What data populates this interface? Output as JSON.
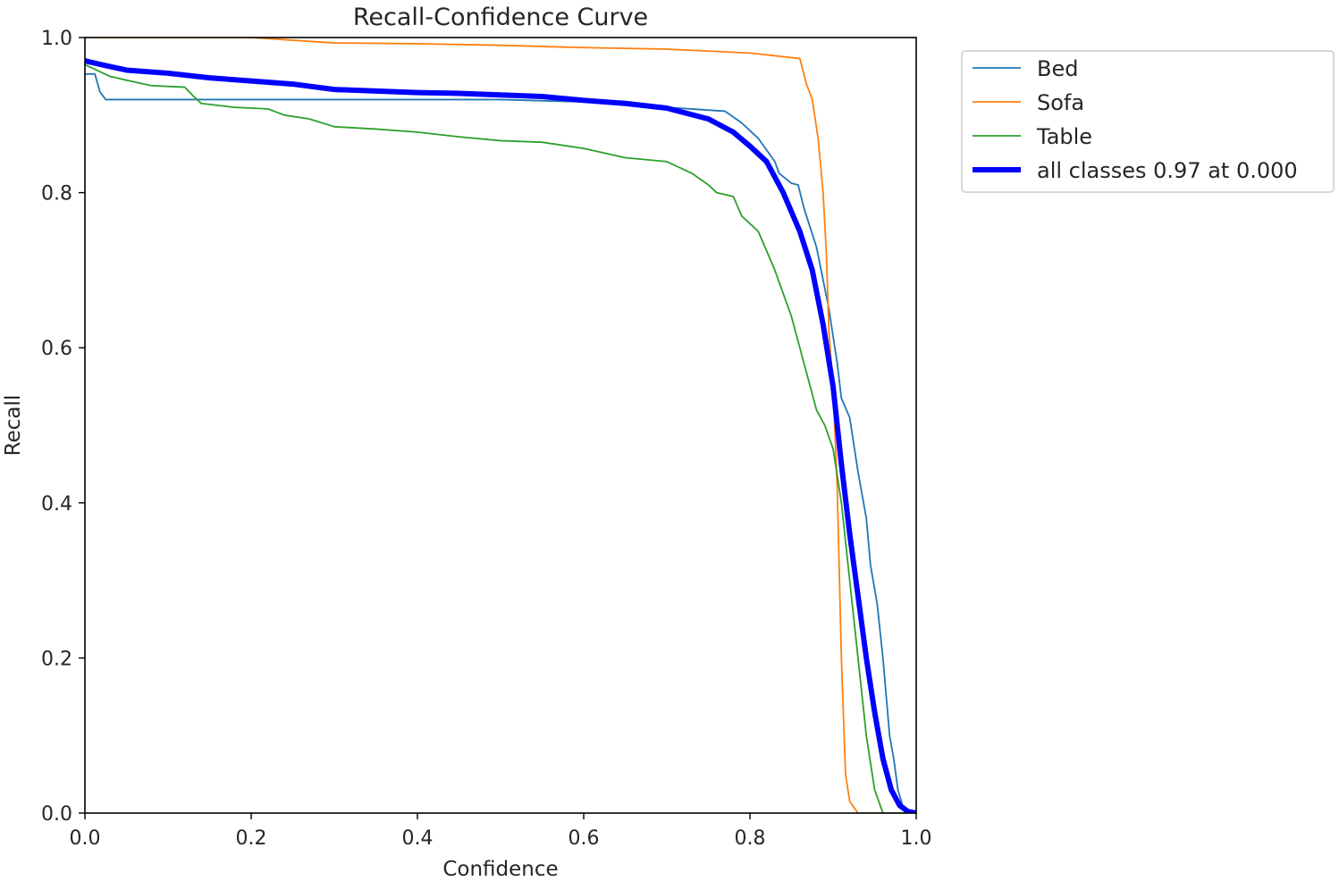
{
  "chart_data": {
    "type": "line",
    "title": "Recall-Confidence Curve",
    "xlabel": "Confidence",
    "ylabel": "Recall",
    "xlim": [
      0.0,
      1.0
    ],
    "ylim": [
      0.0,
      1.0
    ],
    "grid": false,
    "legend_position": "outside-top-right",
    "x_ticks": [
      "0.0",
      "0.2",
      "0.4",
      "0.6",
      "0.8",
      "1.0"
    ],
    "y_ticks": [
      "0.0",
      "0.2",
      "0.4",
      "0.6",
      "0.8",
      "1.0"
    ],
    "series": [
      {
        "name": "Bed",
        "color": "#1f77b4",
        "line_width": "thin",
        "points": [
          [
            0.0,
            0.953
          ],
          [
            0.012,
            0.953
          ],
          [
            0.018,
            0.93
          ],
          [
            0.025,
            0.92
          ],
          [
            0.1,
            0.92
          ],
          [
            0.2,
            0.92
          ],
          [
            0.3,
            0.92
          ],
          [
            0.4,
            0.92
          ],
          [
            0.5,
            0.92
          ],
          [
            0.6,
            0.917
          ],
          [
            0.7,
            0.91
          ],
          [
            0.77,
            0.905
          ],
          [
            0.79,
            0.89
          ],
          [
            0.81,
            0.87
          ],
          [
            0.83,
            0.84
          ],
          [
            0.835,
            0.825
          ],
          [
            0.85,
            0.812
          ],
          [
            0.858,
            0.81
          ],
          [
            0.865,
            0.78
          ],
          [
            0.88,
            0.73
          ],
          [
            0.895,
            0.65
          ],
          [
            0.905,
            0.58
          ],
          [
            0.91,
            0.535
          ],
          [
            0.92,
            0.51
          ],
          [
            0.93,
            0.44
          ],
          [
            0.94,
            0.38
          ],
          [
            0.945,
            0.32
          ],
          [
            0.953,
            0.27
          ],
          [
            0.96,
            0.2
          ],
          [
            0.968,
            0.1
          ],
          [
            0.973,
            0.07
          ],
          [
            0.978,
            0.03
          ],
          [
            0.985,
            0.005
          ],
          [
            1.0,
            0.0
          ]
        ]
      },
      {
        "name": "Sofa",
        "color": "#ff7f0e",
        "line_width": "thin",
        "points": [
          [
            0.0,
            1.0
          ],
          [
            0.2,
            1.0
          ],
          [
            0.3,
            0.993
          ],
          [
            0.4,
            0.992
          ],
          [
            0.5,
            0.99
          ],
          [
            0.6,
            0.987
          ],
          [
            0.7,
            0.985
          ],
          [
            0.8,
            0.98
          ],
          [
            0.86,
            0.973
          ],
          [
            0.868,
            0.94
          ],
          [
            0.875,
            0.92
          ],
          [
            0.882,
            0.87
          ],
          [
            0.888,
            0.8
          ],
          [
            0.892,
            0.72
          ],
          [
            0.895,
            0.62
          ],
          [
            0.9,
            0.55
          ],
          [
            0.905,
            0.42
          ],
          [
            0.91,
            0.2
          ],
          [
            0.915,
            0.05
          ],
          [
            0.92,
            0.015
          ],
          [
            0.93,
            0.0
          ],
          [
            1.0,
            0.0
          ]
        ]
      },
      {
        "name": "Table",
        "color": "#2ca02c",
        "line_width": "thin",
        "points": [
          [
            0.0,
            0.965
          ],
          [
            0.01,
            0.96
          ],
          [
            0.03,
            0.95
          ],
          [
            0.05,
            0.945
          ],
          [
            0.08,
            0.938
          ],
          [
            0.12,
            0.936
          ],
          [
            0.13,
            0.925
          ],
          [
            0.14,
            0.915
          ],
          [
            0.18,
            0.91
          ],
          [
            0.22,
            0.908
          ],
          [
            0.24,
            0.9
          ],
          [
            0.27,
            0.895
          ],
          [
            0.3,
            0.885
          ],
          [
            0.35,
            0.882
          ],
          [
            0.4,
            0.878
          ],
          [
            0.45,
            0.872
          ],
          [
            0.5,
            0.867
          ],
          [
            0.55,
            0.865
          ],
          [
            0.6,
            0.857
          ],
          [
            0.65,
            0.845
          ],
          [
            0.7,
            0.84
          ],
          [
            0.73,
            0.825
          ],
          [
            0.75,
            0.81
          ],
          [
            0.76,
            0.8
          ],
          [
            0.78,
            0.795
          ],
          [
            0.79,
            0.77
          ],
          [
            0.81,
            0.75
          ],
          [
            0.83,
            0.7
          ],
          [
            0.84,
            0.67
          ],
          [
            0.85,
            0.64
          ],
          [
            0.86,
            0.6
          ],
          [
            0.87,
            0.56
          ],
          [
            0.88,
            0.52
          ],
          [
            0.89,
            0.5
          ],
          [
            0.9,
            0.47
          ],
          [
            0.91,
            0.4
          ],
          [
            0.92,
            0.3
          ],
          [
            0.93,
            0.2
          ],
          [
            0.94,
            0.1
          ],
          [
            0.95,
            0.03
          ],
          [
            0.96,
            0.0
          ],
          [
            1.0,
            0.0
          ]
        ]
      },
      {
        "name": "all classes 0.97 at 0.000",
        "color": "#0000ff",
        "line_width": "thick",
        "points": [
          [
            0.0,
            0.97
          ],
          [
            0.02,
            0.965
          ],
          [
            0.05,
            0.958
          ],
          [
            0.1,
            0.954
          ],
          [
            0.15,
            0.948
          ],
          [
            0.2,
            0.944
          ],
          [
            0.25,
            0.94
          ],
          [
            0.3,
            0.933
          ],
          [
            0.35,
            0.931
          ],
          [
            0.4,
            0.929
          ],
          [
            0.45,
            0.928
          ],
          [
            0.5,
            0.926
          ],
          [
            0.55,
            0.924
          ],
          [
            0.6,
            0.919
          ],
          [
            0.65,
            0.915
          ],
          [
            0.7,
            0.909
          ],
          [
            0.75,
            0.895
          ],
          [
            0.78,
            0.878
          ],
          [
            0.8,
            0.86
          ],
          [
            0.82,
            0.84
          ],
          [
            0.84,
            0.8
          ],
          [
            0.86,
            0.75
          ],
          [
            0.875,
            0.7
          ],
          [
            0.888,
            0.63
          ],
          [
            0.9,
            0.55
          ],
          [
            0.91,
            0.45
          ],
          [
            0.92,
            0.36
          ],
          [
            0.93,
            0.28
          ],
          [
            0.94,
            0.2
          ],
          [
            0.95,
            0.13
          ],
          [
            0.96,
            0.07
          ],
          [
            0.97,
            0.03
          ],
          [
            0.98,
            0.01
          ],
          [
            0.99,
            0.002
          ],
          [
            1.0,
            0.0
          ]
        ]
      }
    ]
  }
}
